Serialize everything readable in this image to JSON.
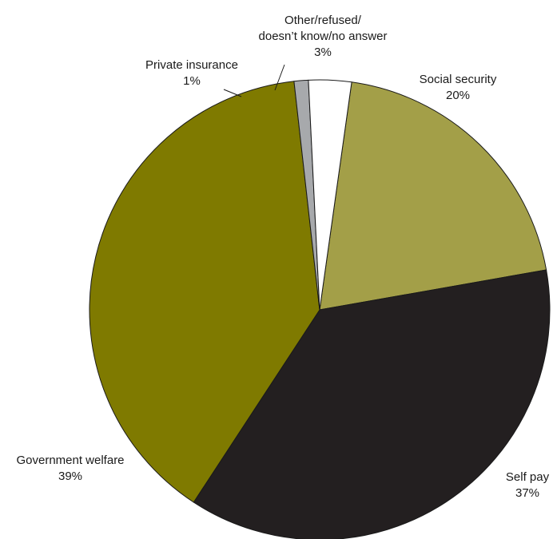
{
  "chart_data": {
    "type": "pie",
    "title": "",
    "slices": [
      {
        "label": "Social security",
        "value": 20,
        "value_label": "20%",
        "color": "#a39f48"
      },
      {
        "label": "Self pay",
        "value": 37,
        "value_label": "37%",
        "color": "#231f20"
      },
      {
        "label": "Government welfare",
        "value": 39,
        "value_label": "39%",
        "color": "#7f7a00"
      },
      {
        "label": "Private insurance",
        "value": 1,
        "value_label": "1%",
        "color": "#a7a9ac"
      },
      {
        "label_lines": [
          "Other/refused/",
          "doesn’t know/no answer"
        ],
        "label": "Other/refused/ doesn’t know/no answer",
        "value": 3,
        "value_label": "3%",
        "color": "#ffffff"
      }
    ],
    "start_angle_deg": 8,
    "direction": "clockwise"
  }
}
